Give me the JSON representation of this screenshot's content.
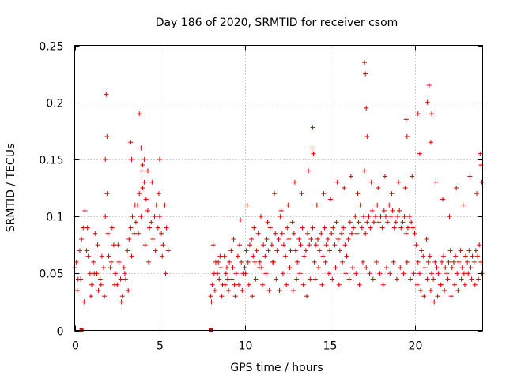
{
  "chart_data": {
    "type": "scatter",
    "title": "Day 186 of 2020, SRMTID for receiver csom",
    "xlabel": "GPS time / hours",
    "ylabel": "SRMTID / TECUs",
    "xlim": [
      0,
      24
    ],
    "ylim": [
      0,
      0.25
    ],
    "xticks": [
      0,
      5,
      10,
      15,
      20
    ],
    "xtick_labels": [
      "0",
      "5",
      "10",
      "15",
      "20"
    ],
    "yticks": [
      0,
      0.05,
      0.1,
      0.15,
      0.2,
      0.25
    ],
    "ytick_labels": [
      "0",
      "0.05",
      "0.1",
      "0.15",
      "0.2",
      "0.25"
    ],
    "grid": true,
    "marker": "+",
    "color": "#dd0000",
    "zero_markers_x": [
      0.4,
      8.0
    ],
    "series": [
      {
        "name": "csom",
        "x": [
          0.0,
          0.1,
          0.2,
          0.3,
          0.4,
          0.5,
          0.6,
          0.7,
          0.8,
          0.9,
          1.0,
          1.1,
          1.2,
          1.3,
          1.4,
          1.5,
          1.6,
          1.7,
          1.8,
          1.9,
          2.0,
          2.1,
          2.2,
          2.3,
          2.4,
          2.5,
          2.6,
          2.7,
          2.8,
          2.9,
          3.0,
          3.1,
          3.2,
          3.3,
          3.4,
          3.5,
          3.6,
          3.7,
          3.8,
          3.9,
          4.0,
          4.1,
          4.2,
          4.3,
          4.4,
          4.5,
          4.6,
          4.7,
          4.8,
          4.9,
          5.0,
          5.1,
          5.2,
          5.3,
          5.4,
          5.5,
          0.15,
          0.35,
          0.55,
          0.75,
          0.95,
          1.15,
          1.35,
          1.55,
          1.75,
          1.95,
          2.15,
          2.35,
          2.55,
          2.75,
          2.95,
          3.15,
          3.35,
          3.55,
          3.75,
          3.95,
          4.15,
          4.35,
          4.55,
          4.75,
          4.95,
          5.15,
          5.35,
          1.85,
          1.9,
          1.8,
          3.3,
          3.35,
          3.8,
          3.9,
          4.0,
          4.1,
          4.3,
          5.0,
          8.0,
          8.1,
          8.2,
          8.3,
          8.4,
          8.5,
          8.6,
          8.7,
          8.8,
          8.9,
          9.0,
          9.1,
          9.2,
          9.3,
          9.4,
          9.5,
          9.6,
          9.7,
          9.8,
          9.9,
          10.0,
          10.1,
          10.2,
          10.3,
          10.4,
          10.5,
          10.6,
          10.7,
          10.8,
          10.9,
          11.0,
          11.1,
          11.2,
          11.3,
          11.4,
          11.5,
          11.6,
          11.7,
          11.8,
          11.9,
          12.0,
          12.1,
          12.2,
          12.3,
          12.4,
          12.5,
          12.6,
          12.7,
          12.8,
          12.9,
          13.0,
          13.1,
          13.2,
          13.3,
          13.4,
          13.5,
          13.6,
          13.7,
          13.8,
          13.9,
          14.0,
          8.05,
          8.25,
          8.45,
          8.65,
          8.85,
          9.05,
          9.25,
          9.45,
          9.65,
          9.85,
          10.05,
          10.25,
          10.45,
          10.65,
          10.85,
          11.05,
          11.25,
          11.45,
          11.65,
          11.85,
          12.05,
          12.25,
          12.45,
          12.65,
          12.85,
          13.05,
          13.25,
          13.45,
          13.65,
          13.85,
          8.15,
          8.55,
          8.95,
          9.35,
          9.75,
          10.15,
          10.55,
          10.95,
          11.35,
          11.75,
          12.15,
          12.55,
          12.95,
          13.35,
          13.75,
          14.1,
          14.2,
          14.3,
          14.4,
          14.5,
          14.6,
          14.7,
          14.8,
          14.9,
          15.0,
          15.1,
          15.2,
          15.3,
          15.4,
          15.5,
          15.6,
          15.7,
          15.8,
          15.9,
          16.0,
          16.1,
          16.2,
          16.3,
          16.4,
          16.5,
          16.6,
          16.7,
          16.8,
          16.9,
          17.0,
          17.1,
          17.2,
          17.3,
          17.4,
          17.5,
          17.6,
          17.7,
          17.8,
          17.9,
          18.0,
          18.1,
          18.2,
          18.3,
          18.4,
          18.5,
          18.6,
          18.7,
          18.8,
          18.9,
          19.0,
          19.1,
          19.2,
          19.3,
          19.4,
          19.5,
          19.6,
          19.7,
          19.8,
          19.9,
          20.0,
          14.15,
          14.35,
          14.55,
          14.75,
          14.95,
          15.15,
          15.35,
          15.55,
          15.75,
          15.95,
          16.15,
          16.35,
          16.55,
          16.75,
          16.95,
          17.15,
          17.35,
          17.55,
          17.75,
          17.95,
          18.15,
          18.35,
          18.55,
          18.75,
          18.95,
          19.15,
          19.35,
          19.55,
          19.75,
          19.95,
          14.25,
          14.65,
          15.05,
          15.45,
          15.85,
          16.25,
          16.65,
          17.05,
          17.45,
          17.85,
          18.25,
          18.65,
          19.05,
          19.45,
          19.85,
          13.95,
          14.0,
          14.05,
          17.05,
          17.1,
          17.15,
          17.2,
          19.5,
          19.55,
          20.2,
          20.3,
          20.75,
          20.85,
          20.95,
          21.0,
          20.1,
          20.2,
          20.3,
          20.4,
          20.5,
          20.6,
          20.7,
          20.8,
          20.9,
          21.0,
          21.1,
          21.2,
          21.3,
          21.4,
          21.5,
          21.6,
          21.7,
          21.8,
          21.9,
          22.0,
          22.1,
          22.2,
          22.3,
          22.4,
          22.5,
          22.6,
          22.7,
          22.8,
          22.9,
          23.0,
          23.1,
          23.2,
          23.3,
          23.4,
          23.5,
          23.6,
          23.7,
          23.8,
          23.9,
          20.15,
          20.35,
          20.55,
          20.75,
          20.95,
          21.15,
          21.35,
          21.55,
          21.75,
          21.95,
          22.15,
          22.35,
          22.55,
          22.75,
          22.95,
          23.15,
          23.35,
          23.55,
          23.75,
          23.95,
          21.25,
          21.65,
          22.05,
          22.45,
          22.85,
          23.25,
          23.65,
          23.85,
          23.9,
          23.95
        ],
        "y": [
          0.055,
          0.06,
          0.045,
          0.07,
          0.08,
          0.09,
          0.105,
          0.07,
          0.065,
          0.05,
          0.04,
          0.06,
          0.085,
          0.05,
          0.035,
          0.045,
          0.065,
          0.055,
          0.1,
          0.12,
          0.065,
          0.055,
          0.09,
          0.075,
          0.05,
          0.04,
          0.06,
          0.045,
          0.03,
          0.055,
          0.045,
          0.07,
          0.08,
          0.09,
          0.1,
          0.085,
          0.095,
          0.11,
          0.12,
          0.1,
          0.125,
          0.13,
          0.115,
          0.105,
          0.09,
          0.095,
          0.08,
          0.1,
          0.11,
          0.09,
          0.1,
          0.085,
          0.075,
          0.11,
          0.09,
          0.07,
          0.035,
          0.045,
          0.025,
          0.09,
          0.03,
          0.05,
          0.075,
          0.04,
          0.03,
          0.085,
          0.06,
          0.04,
          0.075,
          0.025,
          0.05,
          0.035,
          0.065,
          0.11,
          0.085,
          0.14,
          0.075,
          0.06,
          0.13,
          0.07,
          0.12,
          0.065,
          0.05,
          0.207,
          0.17,
          0.15,
          0.165,
          0.15,
          0.19,
          0.16,
          0.145,
          0.15,
          0.14,
          0.15,
          0.03,
          0.04,
          0.05,
          0.06,
          0.05,
          0.045,
          0.055,
          0.04,
          0.065,
          0.05,
          0.045,
          0.06,
          0.07,
          0.055,
          0.04,
          0.05,
          0.065,
          0.075,
          0.06,
          0.05,
          0.055,
          0.07,
          0.06,
          0.075,
          0.08,
          0.065,
          0.06,
          0.07,
          0.085,
          0.06,
          0.055,
          0.075,
          0.065,
          0.08,
          0.07,
          0.09,
          0.075,
          0.06,
          0.085,
          0.07,
          0.08,
          0.1,
          0.085,
          0.075,
          0.065,
          0.09,
          0.08,
          0.07,
          0.095,
          0.085,
          0.07,
          0.06,
          0.08,
          0.075,
          0.09,
          0.065,
          0.07,
          0.085,
          0.075,
          0.08,
          0.09,
          0.025,
          0.035,
          0.06,
          0.03,
          0.04,
          0.035,
          0.045,
          0.03,
          0.04,
          0.035,
          0.05,
          0.04,
          0.03,
          0.045,
          0.055,
          0.04,
          0.05,
          0.035,
          0.06,
          0.045,
          0.035,
          0.05,
          0.04,
          0.055,
          0.035,
          0.045,
          0.05,
          0.04,
          0.03,
          0.045,
          0.075,
          0.065,
          0.055,
          0.08,
          0.097,
          0.11,
          0.09,
          0.1,
          0.095,
          0.12,
          0.105,
          0.11,
          0.13,
          0.12,
          0.14,
          0.06,
          0.075,
          0.08,
          0.07,
          0.085,
          0.065,
          0.09,
          0.075,
          0.08,
          0.07,
          0.085,
          0.09,
          0.075,
          0.095,
          0.08,
          0.07,
          0.085,
          0.09,
          0.075,
          0.065,
          0.08,
          0.095,
          0.085,
          0.09,
          0.1,
          0.085,
          0.095,
          0.11,
          0.09,
          0.1,
          0.085,
          0.095,
          0.1,
          0.09,
          0.105,
          0.095,
          0.1,
          0.11,
          0.095,
          0.1,
          0.09,
          0.105,
          0.1,
          0.095,
          0.11,
          0.1,
          0.105,
          0.09,
          0.095,
          0.1,
          0.105,
          0.09,
          0.095,
          0.1,
          0.085,
          0.09,
          0.1,
          0.095,
          0.09,
          0.085,
          0.045,
          0.055,
          0.04,
          0.06,
          0.05,
          0.045,
          0.055,
          0.04,
          0.06,
          0.05,
          0.045,
          0.055,
          0.05,
          0.04,
          0.06,
          0.055,
          0.05,
          0.045,
          0.06,
          0.05,
          0.04,
          0.055,
          0.05,
          0.06,
          0.045,
          0.055,
          0.05,
          0.06,
          0.045,
          0.05,
          0.11,
          0.12,
          0.115,
          0.13,
          0.125,
          0.135,
          0.12,
          0.14,
          0.13,
          0.125,
          0.135,
          0.12,
          0.13,
          0.125,
          0.135,
          0.16,
          0.178,
          0.155,
          0.235,
          0.225,
          0.195,
          0.17,
          0.185,
          0.17,
          0.19,
          0.155,
          0.2,
          0.215,
          0.165,
          0.19,
          0.075,
          0.06,
          0.05,
          0.07,
          0.065,
          0.055,
          0.08,
          0.06,
          0.065,
          0.05,
          0.045,
          0.06,
          0.055,
          0.05,
          0.04,
          0.06,
          0.065,
          0.055,
          0.05,
          0.06,
          0.07,
          0.055,
          0.06,
          0.065,
          0.05,
          0.06,
          0.07,
          0.055,
          0.05,
          0.065,
          0.06,
          0.07,
          0.055,
          0.065,
          0.06,
          0.07,
          0.065,
          0.075,
          0.06,
          0.04,
          0.035,
          0.03,
          0.045,
          0.035,
          0.025,
          0.03,
          0.04,
          0.035,
          0.045,
          0.03,
          0.04,
          0.035,
          0.045,
          0.04,
          0.05,
          0.045,
          0.04,
          0.045,
          0.05,
          0.13,
          0.115,
          0.1,
          0.125,
          0.11,
          0.135,
          0.12,
          0.155,
          0.145,
          0.13
        ]
      }
    ]
  }
}
